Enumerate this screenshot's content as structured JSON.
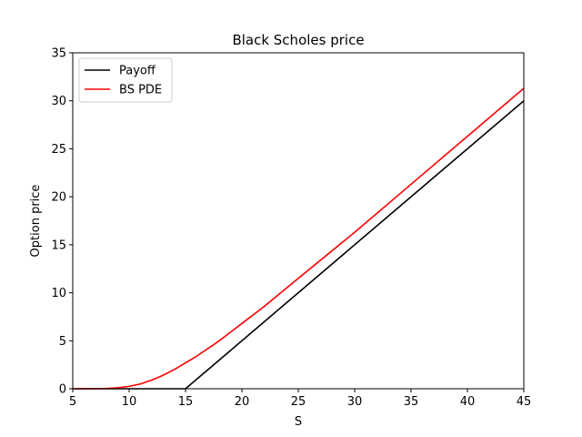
{
  "chart_data": {
    "type": "line",
    "title": "Black Scholes price",
    "xlabel": "S",
    "ylabel": "Option price",
    "xlim": [
      5,
      45
    ],
    "ylim": [
      0,
      35
    ],
    "xticks": [
      5,
      10,
      15,
      20,
      25,
      30,
      35,
      40,
      45
    ],
    "yticks": [
      0,
      5,
      10,
      15,
      20,
      25,
      30,
      35
    ],
    "grid": false,
    "legend_position": "top-left",
    "series": [
      {
        "name": "Payoff",
        "color": "#000000",
        "x": [
          5,
          15,
          45
        ],
        "y": [
          0,
          0,
          30
        ]
      },
      {
        "name": "BS PDE",
        "color": "#ff0000",
        "x": [
          5,
          7,
          8,
          9,
          10,
          11,
          12,
          13,
          14,
          15,
          16,
          17,
          18,
          19,
          20,
          22,
          25,
          30,
          35,
          40,
          45
        ],
        "y": [
          0.0,
          0.01,
          0.03,
          0.1,
          0.25,
          0.5,
          0.9,
          1.4,
          2.0,
          2.7,
          3.4,
          4.2,
          5.0,
          5.9,
          6.8,
          8.6,
          11.5,
          16.3,
          21.3,
          26.3,
          31.3
        ]
      }
    ]
  }
}
